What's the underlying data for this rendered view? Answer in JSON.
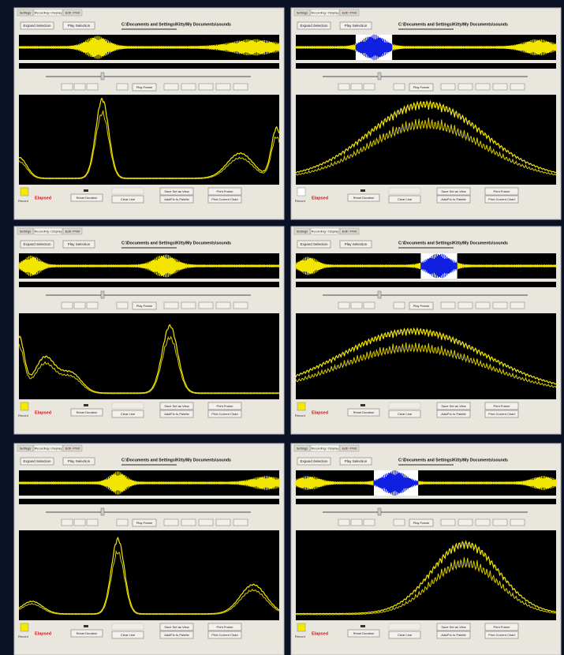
{
  "window": {
    "tabs": [
      "Settings",
      "Recording / Display",
      "Edit / Print"
    ],
    "top_buttons": [
      "Expand Selection",
      "Play Selection"
    ],
    "file_path": "C:\\Documents and Settings\\Kitty\\My Documents\\sounds",
    "frame_button": "Play Frame",
    "indicator_label": "Record",
    "elapsed_label": "Elapsed",
    "bottom_buttons": [
      "Reset Duration",
      "Clear Line",
      "Save Set as View",
      "Add/Fix to Palette",
      "Print Frame",
      "Print Current Chart"
    ]
  }
}
